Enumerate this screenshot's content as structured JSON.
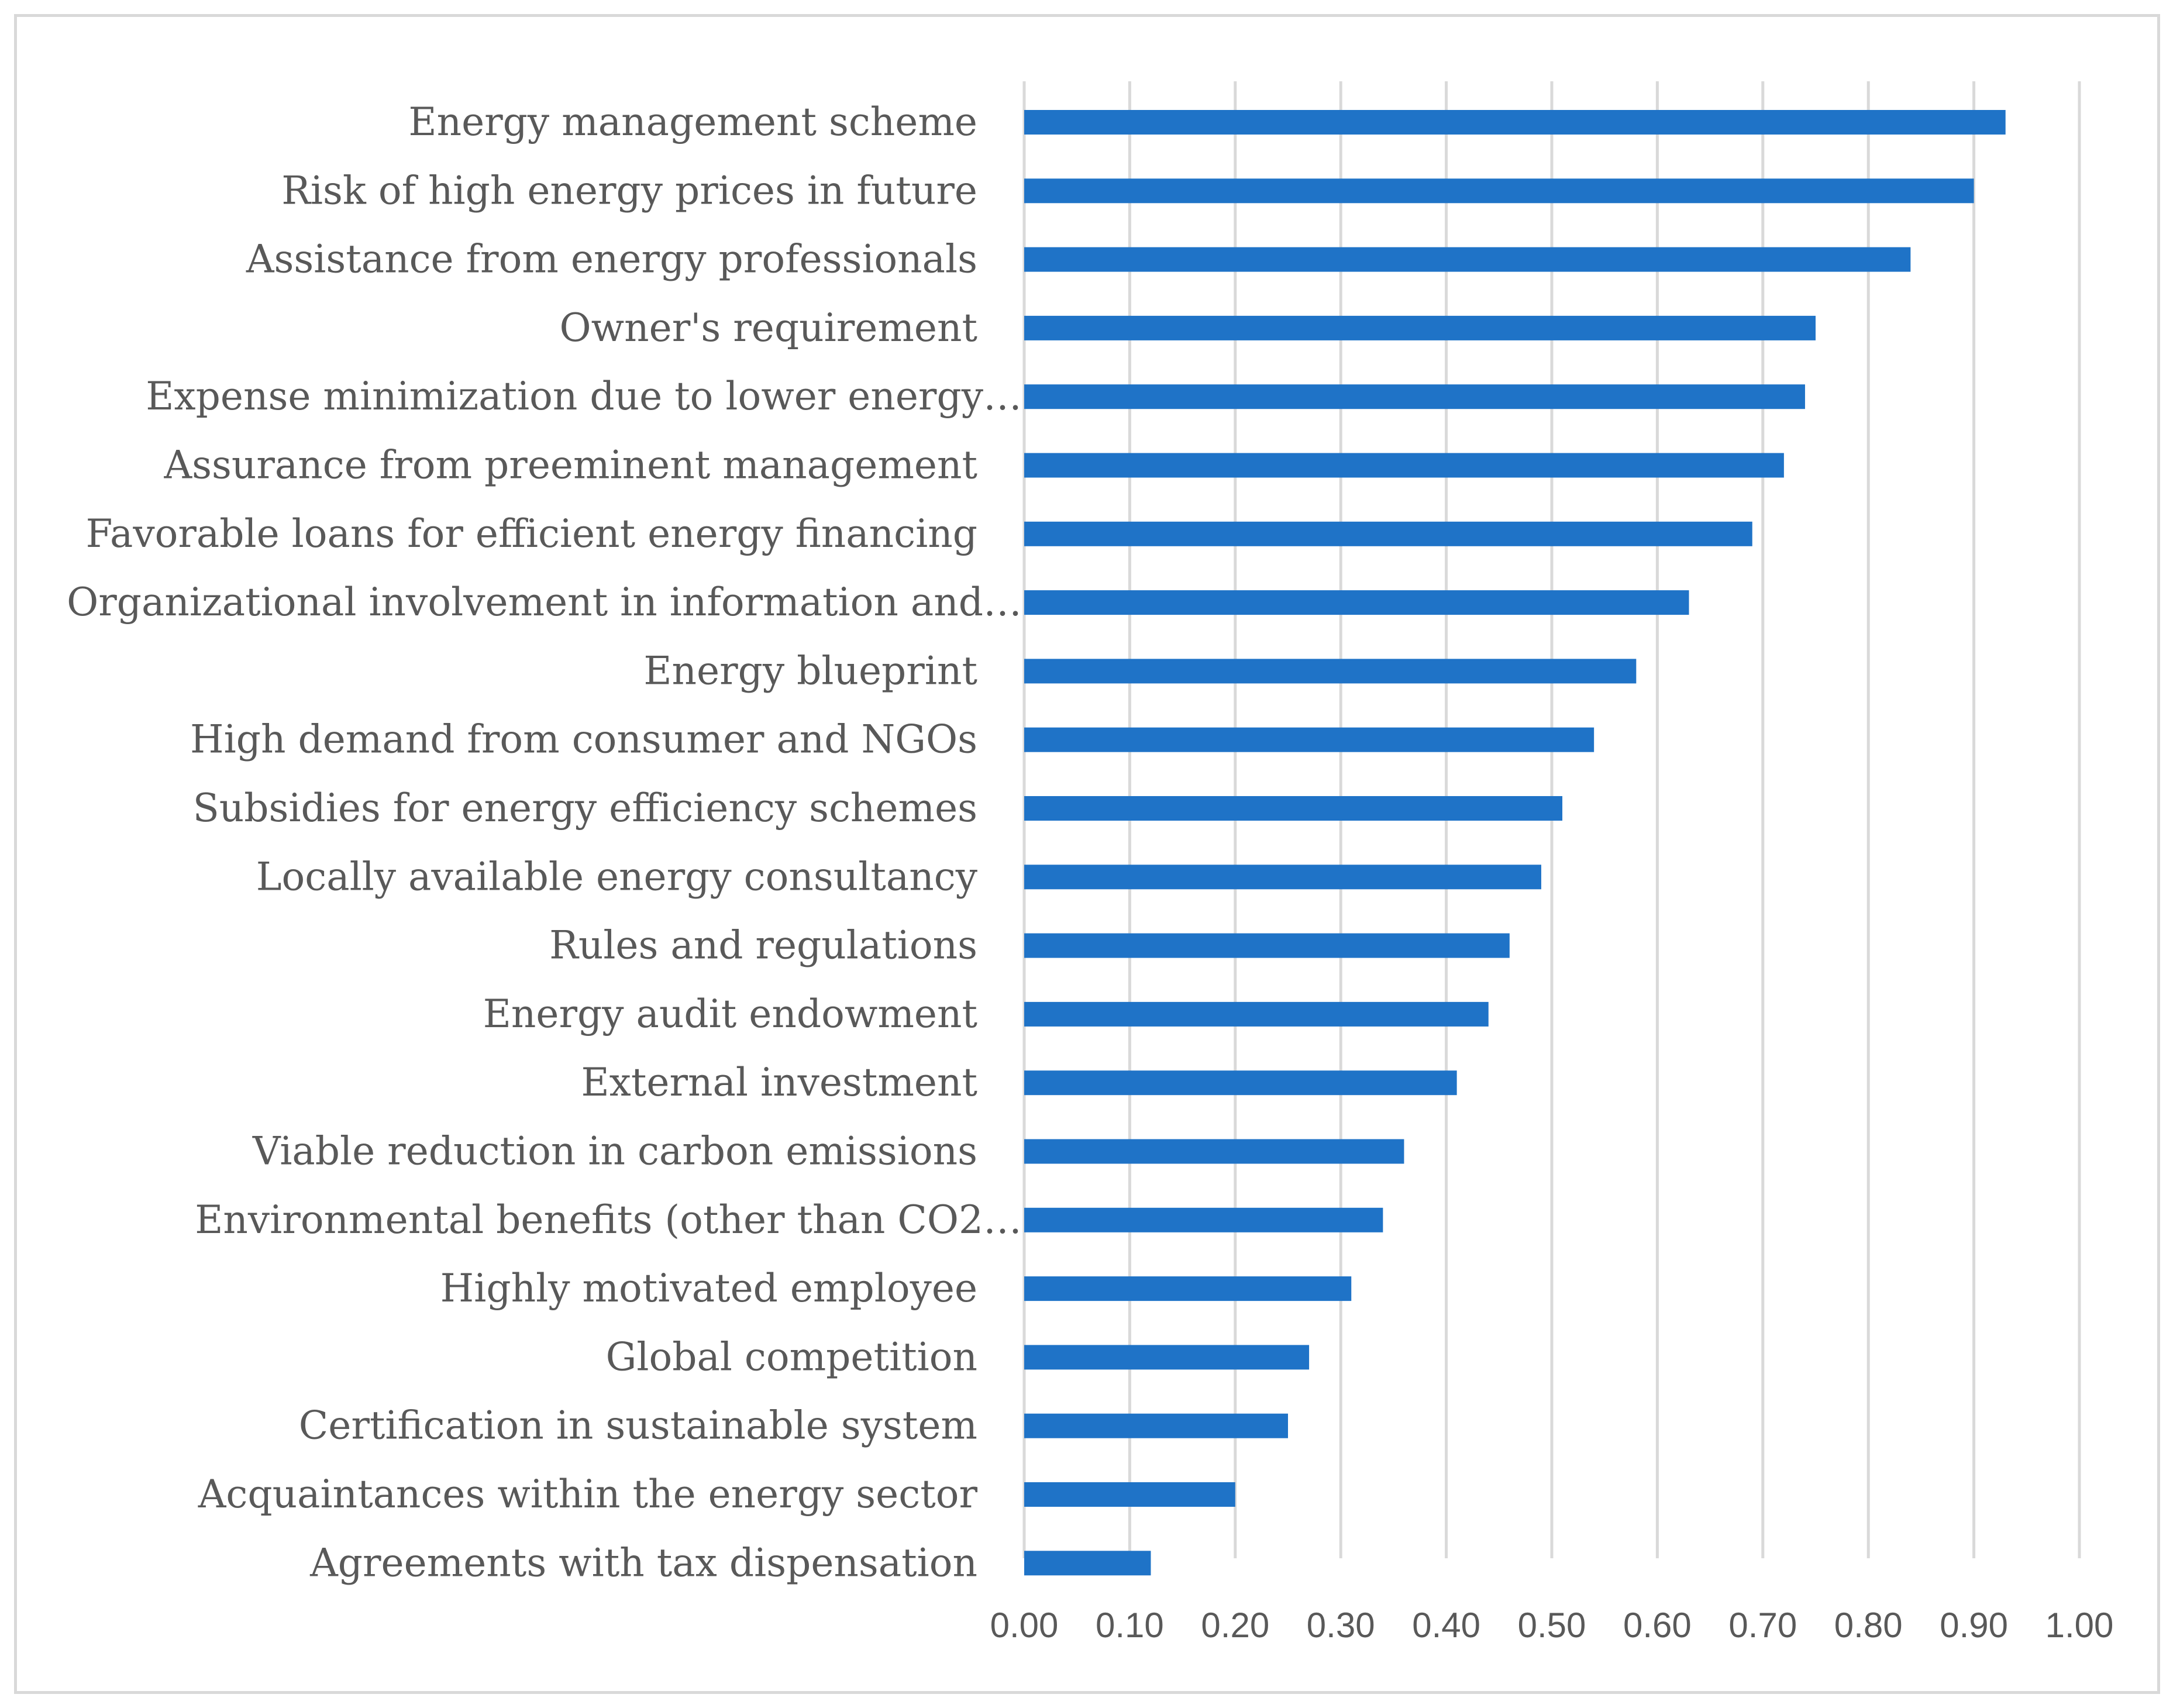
{
  "chart_data": {
    "type": "bar",
    "orientation": "horizontal",
    "title": "",
    "xlabel": "",
    "ylabel": "",
    "xlim": [
      0,
      1.0
    ],
    "grid": true,
    "bar_color": "#1f73c7",
    "grid_color": "#d9d9d9",
    "categories": [
      "Energy management scheme",
      "Risk of high energy prices in future",
      "Assistance from energy professionals",
      "Owner's requirement",
      "Expense minimization due to lower energy…",
      "Assurance from preeminent management",
      "Favorable loans for efficient energy financing",
      "Organizational involvement in information and…",
      "Energy blueprint",
      "High demand from consumer and NGOs",
      "Subsidies for energy efficiency schemes",
      "Locally available energy consultancy",
      "Rules and regulations",
      "Energy audit endowment",
      "External investment",
      "Viable reduction in carbon emissions",
      "Environmental benefits (other than CO2…",
      "Highly motivated employee",
      "Global competition",
      "Certification in sustainable system",
      "Acquaintances within the energy sector",
      "Agreements with tax dispensation"
    ],
    "values": [
      0.93,
      0.9,
      0.84,
      0.75,
      0.74,
      0.72,
      0.69,
      0.63,
      0.58,
      0.54,
      0.51,
      0.49,
      0.46,
      0.44,
      0.41,
      0.36,
      0.34,
      0.31,
      0.27,
      0.25,
      0.2,
      0.12
    ],
    "ticks": [
      "0.00",
      "0.10",
      "0.20",
      "0.30",
      "0.40",
      "0.50",
      "0.60",
      "0.70",
      "0.80",
      "0.90",
      "1.00"
    ]
  }
}
